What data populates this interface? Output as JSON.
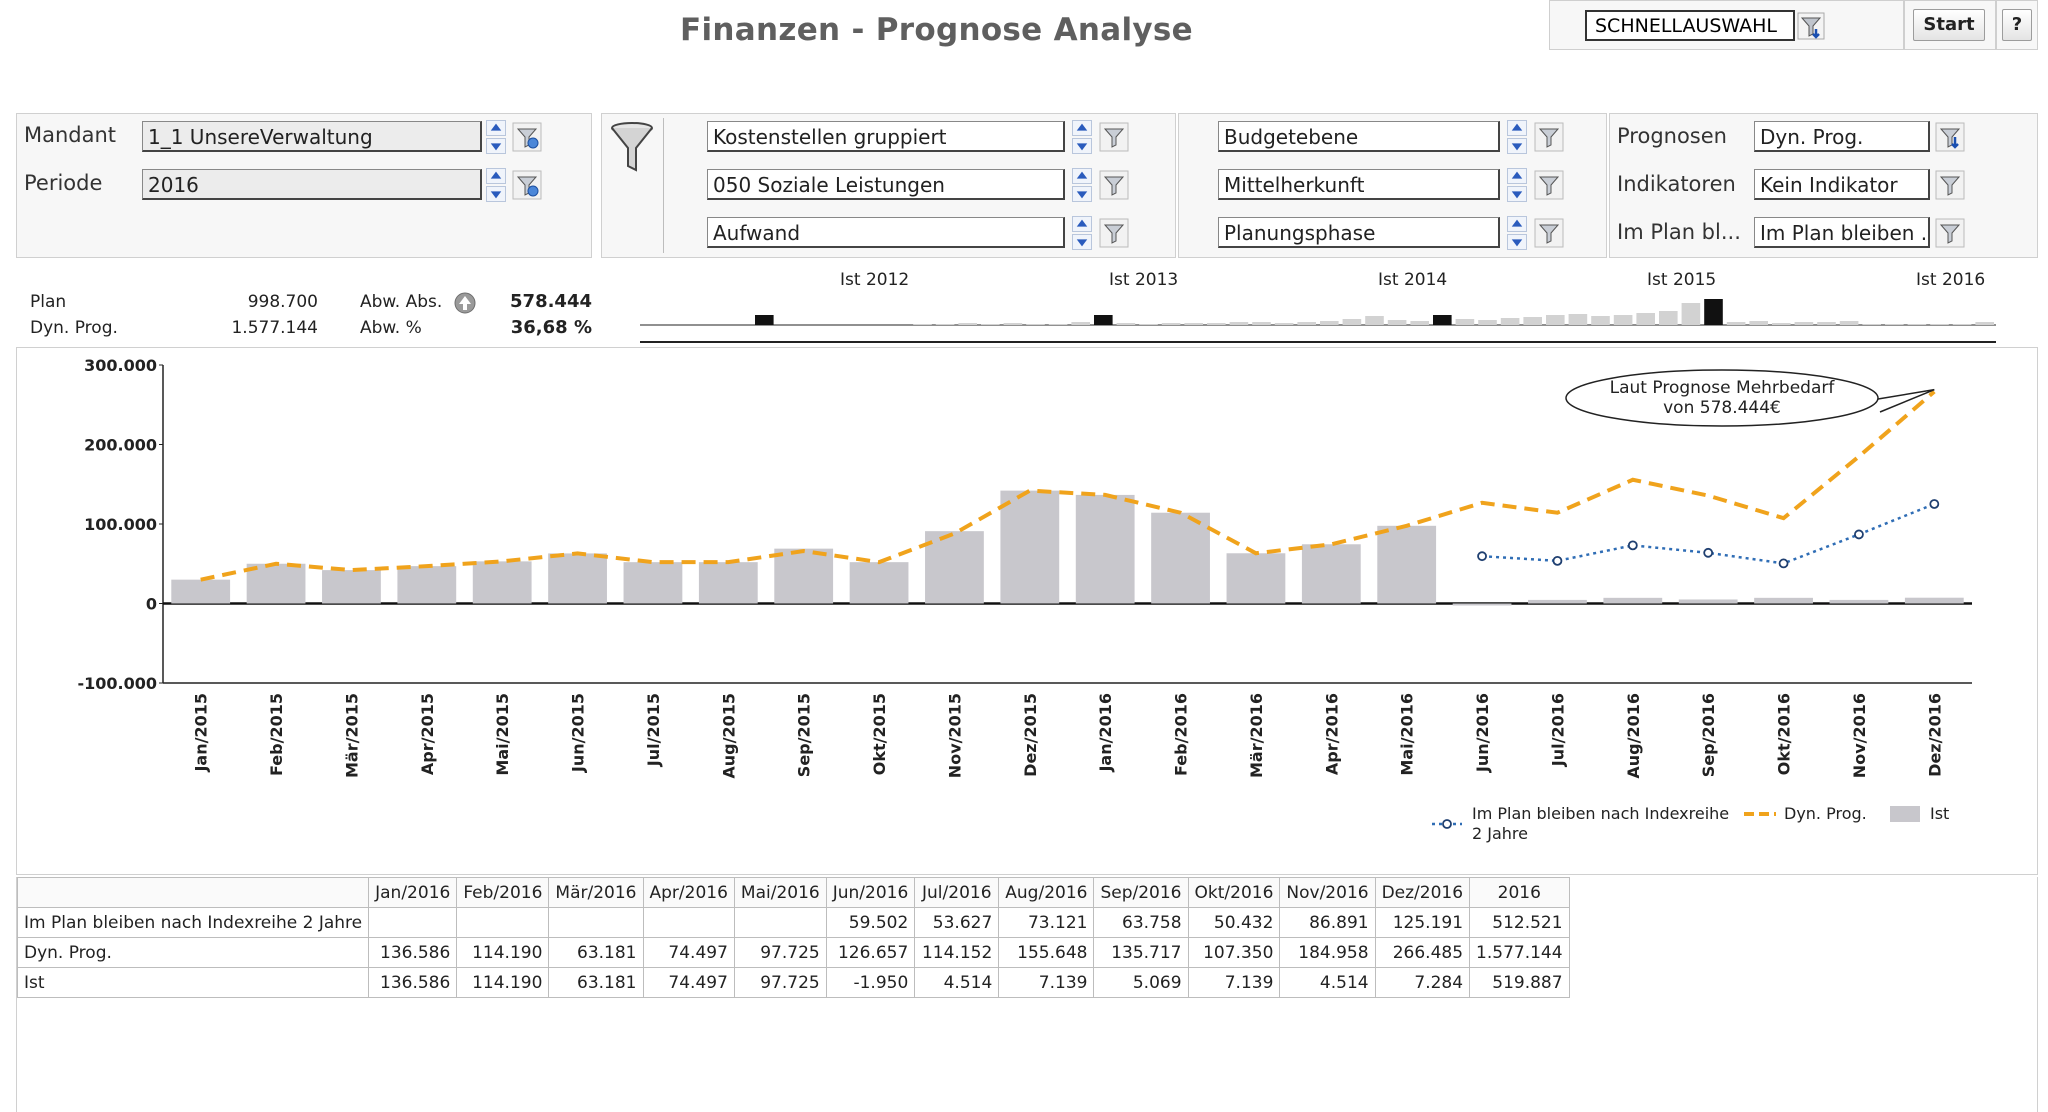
{
  "title": "Finanzen - Prognose Analyse",
  "toolbar": {
    "quick_select_value": "SCHNELLAUSWAHL",
    "start_label": "Start",
    "help_label": "?"
  },
  "filters": {
    "mandant_label": "Mandant",
    "mandant_value": "1_1 UnsereVerwaltung",
    "periode_label": "Periode",
    "periode_value": "2016",
    "group2": [
      "Kostenstellen gruppiert",
      "050 Soziale Leistungen",
      "Aufwand"
    ],
    "group3": [
      "Budgetebene",
      "Mittelherkunft",
      "Planungsphase"
    ],
    "prognosen_label": "Prognosen",
    "prognosen_value": "Dyn. Prog.",
    "indikatoren_label": "Indikatoren",
    "indikatoren_value": "Kein Indikator",
    "implan_label": "Im Plan bl...",
    "implan_value": "Im Plan bleiben ..."
  },
  "kpis": {
    "plan_label": "Plan",
    "plan_value": "998.700",
    "dynprog_label": "Dyn. Prog.",
    "dynprog_value": "1.577.144",
    "abw_abs_label": "Abw. Abs.",
    "abw_abs_value": "578.444",
    "abw_pct_label": "Abw. %",
    "abw_pct_value": "36,68 %"
  },
  "timeline": {
    "labels": [
      "Ist 2012",
      "Ist 2013",
      "Ist 2014",
      "Ist 2015",
      "Ist 2016"
    ],
    "highlighted_years": [
      2012,
      2013,
      2014,
      2015
    ]
  },
  "colors": {
    "ist_bar": "#c8c7cc",
    "dyn_prog": "#f0a31c",
    "im_plan": "#2f6db5",
    "timeline_active": "#111111"
  },
  "chart_data": {
    "type": "bar",
    "categories": [
      "Jan/2015",
      "Feb/2015",
      "Mär/2015",
      "Apr/2015",
      "Mai/2015",
      "Jun/2015",
      "Jul/2015",
      "Aug/2015",
      "Sep/2015",
      "Okt/2015",
      "Nov/2015",
      "Dez/2015",
      "Jan/2016",
      "Feb/2016",
      "Mär/2016",
      "Apr/2016",
      "Mai/2016",
      "Jun/2016",
      "Jul/2016",
      "Aug/2016",
      "Sep/2016",
      "Okt/2016",
      "Nov/2016",
      "Dez/2016"
    ],
    "series": [
      {
        "name": "Ist",
        "type": "bar",
        "values": [
          30000,
          50000,
          42000,
          47000,
          53000,
          63000,
          52000,
          52000,
          69000,
          52000,
          91000,
          142000,
          136586,
          114190,
          63181,
          74497,
          97725,
          -1950,
          4514,
          7139,
          5069,
          7139,
          4514,
          7284
        ]
      },
      {
        "name": "Dyn. Prog.",
        "type": "line",
        "values": [
          30000,
          50000,
          42000,
          47000,
          53000,
          63000,
          52000,
          52000,
          66000,
          52000,
          88000,
          142000,
          136586,
          114190,
          63181,
          74497,
          97725,
          126657,
          114152,
          155648,
          135717,
          107350,
          184958,
          266485
        ]
      },
      {
        "name": "Im Plan bleiben nach Indexreihe 2 Jahre",
        "type": "line",
        "values": [
          null,
          null,
          null,
          null,
          null,
          null,
          null,
          null,
          null,
          null,
          null,
          null,
          null,
          null,
          null,
          null,
          null,
          59502,
          53627,
          73121,
          63758,
          50432,
          86891,
          125191
        ]
      }
    ],
    "ylim": [
      -100000,
      300000
    ],
    "yticks": [
      "300.000",
      "200.000",
      "100.000",
      "0",
      "-100.000"
    ],
    "annotation": {
      "line1": "Laut Prognose Mehrbedarf",
      "line2": "von 578.444€"
    },
    "legend": {
      "position": "bottom-right",
      "items": [
        "Im Plan bleiben nach Indexreihe",
        "2 Jahre",
        "Dyn. Prog.",
        "Ist"
      ]
    }
  },
  "table": {
    "headers": [
      "",
      "Jan/2016",
      "Feb/2016",
      "Mär/2016",
      "Apr/2016",
      "Mai/2016",
      "Jun/2016",
      "Jul/2016",
      "Aug/2016",
      "Sep/2016",
      "Okt/2016",
      "Nov/2016",
      "Dez/2016",
      "2016"
    ],
    "rows": [
      [
        "Im Plan bleiben nach Indexreihe 2 Jahre",
        "",
        "",
        "",
        "",
        "",
        "59.502",
        "53.627",
        "73.121",
        "63.758",
        "50.432",
        "86.891",
        "125.191",
        "512.521"
      ],
      [
        "Dyn. Prog.",
        "136.586",
        "114.190",
        "63.181",
        "74.497",
        "97.725",
        "126.657",
        "114.152",
        "155.648",
        "135.717",
        "107.350",
        "184.958",
        "266.485",
        "1.577.144"
      ],
      [
        "Ist",
        "136.586",
        "114.190",
        "63.181",
        "74.497",
        "97.725",
        "-1.950",
        "4.514",
        "7.139",
        "5.069",
        "7.139",
        "4.514",
        "7.284",
        "519.887"
      ]
    ]
  }
}
